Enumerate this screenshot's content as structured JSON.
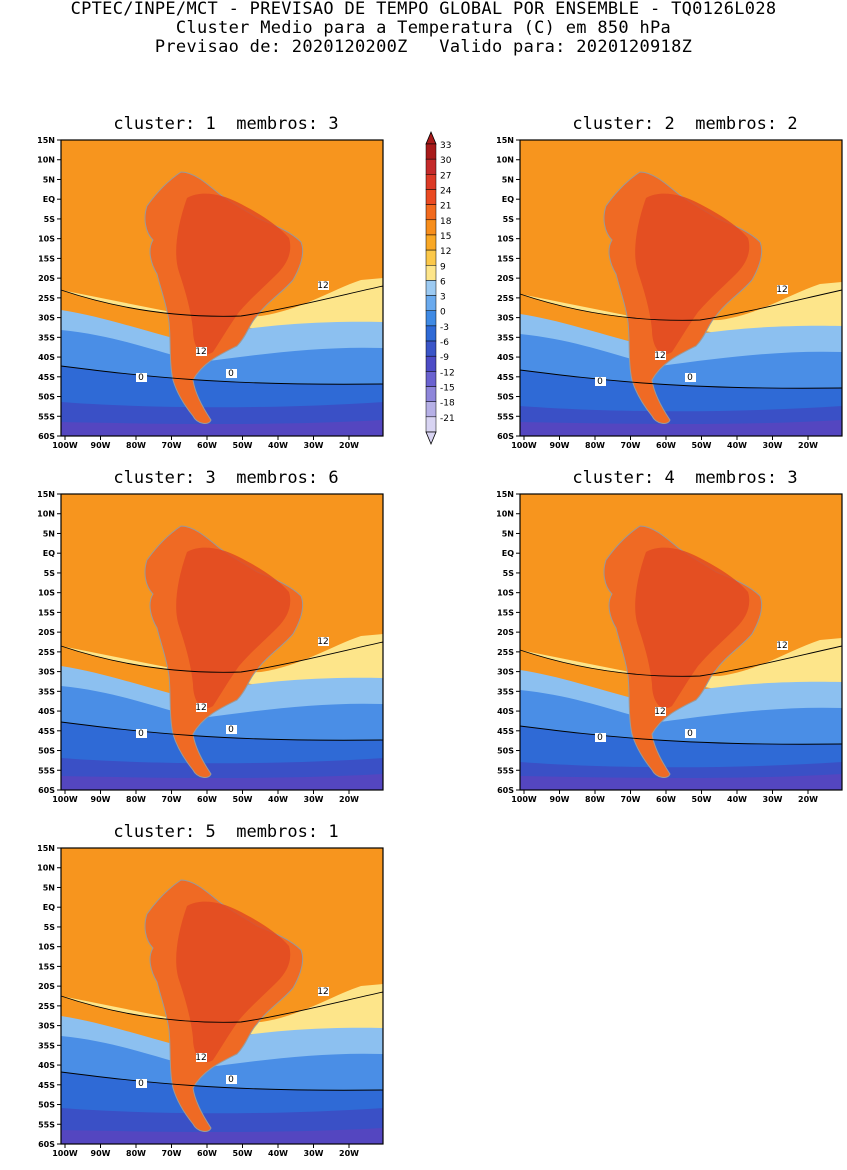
{
  "header": {
    "line1": "CPTEC/INPE/MCT - PREVISAO DE TEMPO GLOBAL POR ENSEMBLE - TQ0126L028",
    "line2": "Cluster Medio para a Temperatura (C) em 850 hPa",
    "line3": "Previsao de: 2020120200Z   Valido para: 2020120918Z"
  },
  "panels": [
    {
      "title": "cluster: 1  membros: 3"
    },
    {
      "title": "cluster: 2  membros: 2"
    },
    {
      "title": "cluster: 3  membros: 6"
    },
    {
      "title": "cluster: 4  membros: 3"
    },
    {
      "title": "cluster: 5  membros: 1"
    }
  ],
  "axes": {
    "lat_labels": [
      "15N",
      "10N",
      "5N",
      "EQ",
      "5S",
      "10S",
      "15S",
      "20S",
      "25S",
      "30S",
      "35S",
      "40S",
      "45S",
      "50S",
      "55S",
      "60S"
    ],
    "lon_labels": [
      "100W",
      "90W",
      "80W",
      "70W",
      "60W",
      "50W",
      "40W",
      "30W",
      "20W"
    ]
  },
  "contour_labels": [
    "12",
    "0"
  ],
  "colorbar": {
    "labels": [
      "33",
      "30",
      "27",
      "24",
      "21",
      "18",
      "15",
      "12",
      "9",
      "6",
      "3",
      "0",
      "-3",
      "-6",
      "-9",
      "-12",
      "-15",
      "-18",
      "-21"
    ],
    "colors": [
      "#a81a1a",
      "#c42a2a",
      "#dc3a26",
      "#ea4a22",
      "#f26a1e",
      "#f78e1c",
      "#f9a825",
      "#fbc84a",
      "#fde58a",
      "#9ccaf2",
      "#6aaaee",
      "#3f8ae4",
      "#2f6ad6",
      "#3a55c8",
      "#4d4cc6",
      "#6a62d0",
      "#8e86da",
      "#b6b0e6",
      "#d8d4f2"
    ]
  },
  "colors": {
    "warm_land": "#ef6a24",
    "hot_core": "#e24a22",
    "orange": "#f7951e",
    "yellow": "#fde58a",
    "light_blue": "#8cc0f0",
    "mid_blue": "#4a8ee6",
    "blue": "#2f6ad6",
    "deep_blue": "#3a50c6",
    "violet": "#5446c0",
    "coast": "#9a9a9a"
  }
}
